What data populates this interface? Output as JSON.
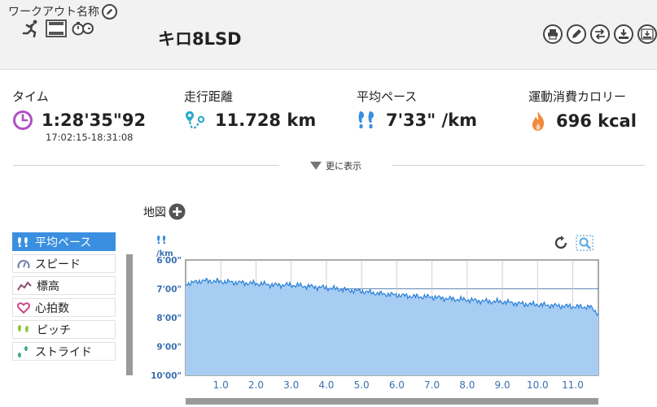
{
  "workout": {
    "name_label": "ワークアウト名称",
    "title": "キロ8LSD"
  },
  "header_icons": [
    "runner-icon",
    "film-icon",
    "stopwatch-icon"
  ],
  "toolbar": [
    "print-icon",
    "edit-icon",
    "swap-icon",
    "download-icon",
    "gpx-icon"
  ],
  "stats": {
    "time": {
      "label": "タイム",
      "value": "1:28'35\"92",
      "sub": "17:02:15-18:31:08"
    },
    "distance": {
      "label": "走行距離",
      "value": "11.728 km"
    },
    "pace": {
      "label": "平均ペース",
      "value": "7'33\" /km"
    },
    "calories": {
      "label": "運動消費カロリー",
      "value": "696 kcal"
    }
  },
  "more_label": "更に表示",
  "map_label": "地図",
  "metrics": [
    {
      "label": "平均ペース",
      "icon": "pace-icon",
      "active": true
    },
    {
      "label": "スピード",
      "icon": "speedometer-icon",
      "active": false
    },
    {
      "label": "標高",
      "icon": "elevation-icon",
      "active": false
    },
    {
      "label": "心拍数",
      "icon": "heart-icon",
      "active": false
    },
    {
      "label": "ピッチ",
      "icon": "cadence-icon",
      "active": false
    },
    {
      "label": "ストライド",
      "icon": "stride-icon",
      "active": false
    }
  ],
  "colors": {
    "accent": "#3a8fe0",
    "time_icon": "#b04fc4",
    "distance_icon": "#29a8c8",
    "calories_icon": "#f08a3c",
    "chart_fill": "#a7cdf3",
    "chart_line": "#2a7fd8"
  },
  "chart_data": {
    "type": "area",
    "y_unit": "/km",
    "y_ticks": [
      "6'00\"",
      "7'00\"",
      "8'00\"",
      "9'00\"",
      "10'00\""
    ],
    "ylim_seconds_per_km": [
      360,
      600
    ],
    "y_inverted": true,
    "x_ticks": [
      "1.0",
      "2.0",
      "3.0",
      "4.0",
      "5.0",
      "6.0",
      "7.0",
      "8.0",
      "9.0",
      "10.0",
      "11.0"
    ],
    "xlim_km": [
      0,
      11.728
    ],
    "grid": true,
    "x_km": [
      0.0,
      0.5,
      1.0,
      1.5,
      2.0,
      2.5,
      3.0,
      3.5,
      4.0,
      4.5,
      5.0,
      5.5,
      6.0,
      6.5,
      7.0,
      7.5,
      8.0,
      8.5,
      9.0,
      9.5,
      10.0,
      10.5,
      11.0,
      11.5,
      11.728
    ],
    "pace_seconds_per_km": [
      410,
      403,
      405,
      407,
      409,
      412,
      412,
      415,
      418,
      422,
      425,
      430,
      433,
      436,
      437,
      441,
      443,
      446,
      447,
      451,
      453,
      455,
      457,
      458,
      472
    ]
  }
}
